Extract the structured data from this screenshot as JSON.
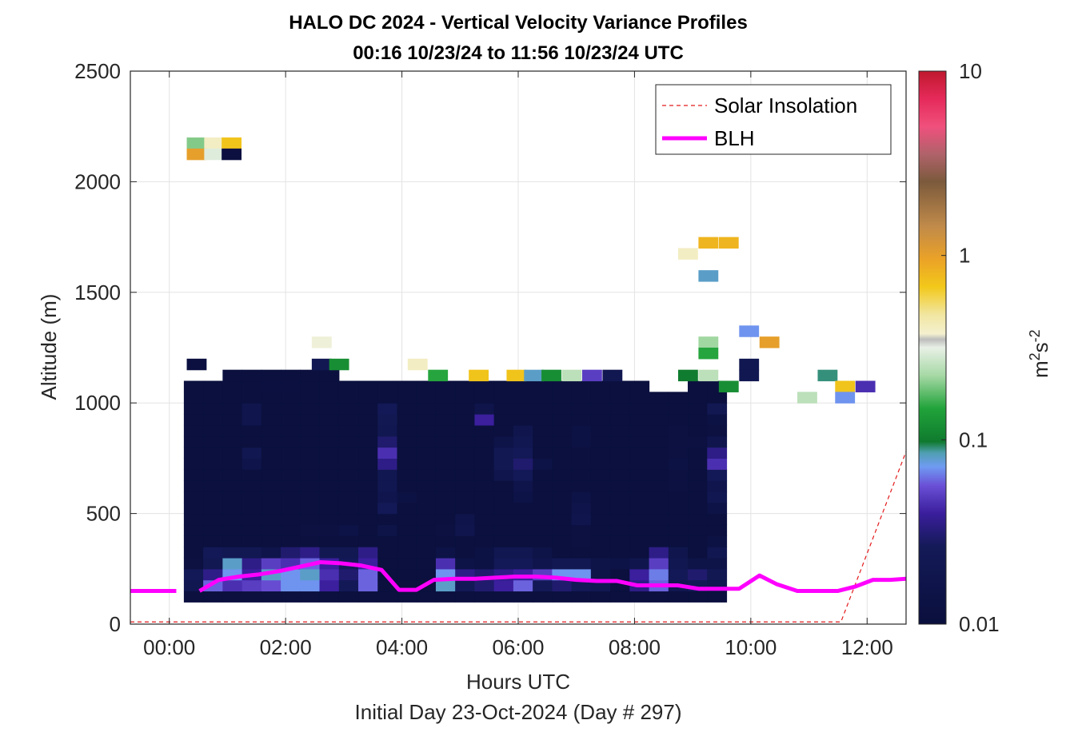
{
  "chart_data": {
    "type": "heatmap",
    "title": "HALO DC 2024 - Vertical Velocity Variance Profiles",
    "subtitle": "00:16 10/23/24 to 11:56 10/23/24  UTC",
    "xlabel": "Hours UTC",
    "xlabel2": "Initial Day 23-Oct-2024 (Day # 297)",
    "ylabel": "Altitude (m)",
    "xlim": [
      -0.67,
      12.67
    ],
    "ylim": [
      0,
      2500
    ],
    "x_ticks": [
      0,
      2,
      4,
      6,
      8,
      10,
      12
    ],
    "x_tick_labels": [
      "00:00",
      "02:00",
      "04:00",
      "06:00",
      "08:00",
      "10:00",
      "12:00"
    ],
    "y_ticks": [
      0,
      500,
      1000,
      1500,
      2000,
      2500
    ],
    "y_tick_labels": [
      "0",
      "500",
      "1000",
      "1500",
      "2000",
      "2500"
    ],
    "grid": true,
    "legend_position": "top-right",
    "colorbar": {
      "label_base": "m",
      "label_sup1": "2",
      "label_mid": "s",
      "label_sup2": "-2",
      "scale": "log",
      "min": 0.01,
      "max": 10,
      "ticks": [
        0.01,
        0.1,
        1,
        10
      ],
      "tick_labels": [
        "0.01",
        "0.1",
        "1",
        "10"
      ]
    },
    "heatmap": {
      "x_start": 0.25,
      "x_step": 0.3333,
      "y_start": 100,
      "y_step": 50,
      "cols": 28,
      "rows": 23,
      "background_value": 0.0105,
      "top_row_index": [
        19,
        19,
        20,
        20,
        20,
        20,
        20,
        20,
        19,
        19,
        19,
        19,
        19,
        19,
        19,
        19,
        19,
        19,
        19,
        19,
        19,
        19,
        19,
        19,
        18,
        18,
        19,
        19
      ],
      "cells": [
        [
          0,
          1,
          0.02
        ],
        [
          0,
          2,
          0.025
        ],
        [
          0,
          3,
          0.012
        ],
        [
          1,
          1,
          0.06
        ],
        [
          1,
          2,
          0.035
        ],
        [
          1,
          3,
          0.022
        ],
        [
          1,
          4,
          0.025
        ],
        [
          2,
          1,
          0.045
        ],
        [
          2,
          2,
          0.07
        ],
        [
          2,
          3,
          0.08
        ],
        [
          2,
          4,
          0.022
        ],
        [
          3,
          1,
          0.05
        ],
        [
          3,
          2,
          0.04
        ],
        [
          3,
          3,
          0.035
        ],
        [
          3,
          4,
          0.022
        ],
        [
          3,
          12,
          0.016
        ],
        [
          3,
          13,
          0.02
        ],
        [
          3,
          16,
          0.018
        ],
        [
          3,
          17,
          0.018
        ],
        [
          4,
          1,
          0.055
        ],
        [
          4,
          2,
          0.08
        ],
        [
          4,
          3,
          0.05
        ],
        [
          4,
          4,
          0.016
        ],
        [
          4,
          19,
          0.011
        ],
        [
          5,
          1,
          0.07
        ],
        [
          5,
          2,
          0.07
        ],
        [
          5,
          3,
          0.045
        ],
        [
          5,
          4,
          0.03
        ],
        [
          5,
          19,
          0.011
        ],
        [
          6,
          1,
          0.07
        ],
        [
          6,
          2,
          0.08
        ],
        [
          6,
          3,
          0.06
        ],
        [
          6,
          4,
          0.035
        ],
        [
          6,
          6,
          0.012
        ],
        [
          7,
          1,
          0.04
        ],
        [
          7,
          2,
          0.045
        ],
        [
          7,
          3,
          0.04
        ],
        [
          7,
          4,
          0.022
        ],
        [
          7,
          6,
          0.012
        ],
        [
          8,
          1,
          0.025
        ],
        [
          8,
          2,
          0.03
        ],
        [
          8,
          3,
          0.025
        ],
        [
          8,
          4,
          0.022
        ],
        [
          8,
          6,
          0.014
        ],
        [
          9,
          1,
          0.06
        ],
        [
          9,
          2,
          0.06
        ],
        [
          9,
          3,
          0.04
        ],
        [
          9,
          4,
          0.035
        ],
        [
          10,
          6,
          0.015
        ],
        [
          10,
          8,
          0.025
        ],
        [
          10,
          9,
          0.018
        ],
        [
          10,
          10,
          0.02
        ],
        [
          10,
          11,
          0.02
        ],
        [
          10,
          12,
          0.035
        ],
        [
          10,
          13,
          0.045
        ],
        [
          10,
          14,
          0.03
        ],
        [
          10,
          15,
          0.02
        ],
        [
          10,
          16,
          0.022
        ],
        [
          10,
          17,
          0.025
        ],
        [
          11,
          9,
          0.013
        ],
        [
          13,
          1,
          0.08
        ],
        [
          13,
          2,
          0.07
        ],
        [
          13,
          3,
          0.045
        ],
        [
          13,
          4,
          0.014
        ],
        [
          13,
          6,
          0.012
        ],
        [
          14,
          1,
          0.025
        ],
        [
          14,
          2,
          0.035
        ],
        [
          14,
          3,
          0.014
        ],
        [
          14,
          6,
          0.018
        ],
        [
          14,
          7,
          0.016
        ],
        [
          15,
          1,
          0.03
        ],
        [
          15,
          2,
          0.03
        ],
        [
          15,
          3,
          0.013
        ],
        [
          15,
          4,
          0.013
        ],
        [
          15,
          16,
          0.04
        ],
        [
          15,
          17,
          0.016
        ],
        [
          16,
          1,
          0.04
        ],
        [
          16,
          2,
          0.035
        ],
        [
          16,
          3,
          0.025
        ],
        [
          16,
          4,
          0.02
        ],
        [
          16,
          11,
          0.018
        ],
        [
          16,
          12,
          0.022
        ],
        [
          16,
          13,
          0.022
        ],
        [
          16,
          14,
          0.015
        ],
        [
          17,
          1,
          0.06
        ],
        [
          17,
          2,
          0.04
        ],
        [
          17,
          3,
          0.025
        ],
        [
          17,
          4,
          0.02
        ],
        [
          17,
          9,
          0.014
        ],
        [
          17,
          10,
          0.016
        ],
        [
          17,
          11,
          0.025
        ],
        [
          17,
          12,
          0.03
        ],
        [
          17,
          13,
          0.025
        ],
        [
          17,
          14,
          0.02
        ],
        [
          17,
          15,
          0.018
        ],
        [
          18,
          1,
          0.025
        ],
        [
          18,
          2,
          0.05
        ],
        [
          18,
          3,
          0.018
        ],
        [
          18,
          4,
          0.015
        ],
        [
          18,
          12,
          0.014
        ],
        [
          19,
          1,
          0.03
        ],
        [
          19,
          2,
          0.07
        ],
        [
          19,
          3,
          0.022
        ],
        [
          20,
          1,
          0.025
        ],
        [
          20,
          2,
          0.07
        ],
        [
          20,
          3,
          0.022
        ],
        [
          20,
          5,
          0.012
        ],
        [
          20,
          6,
          0.012
        ],
        [
          20,
          7,
          0.018
        ],
        [
          20,
          8,
          0.016
        ],
        [
          20,
          9,
          0.014
        ],
        [
          20,
          14,
          0.013
        ],
        [
          20,
          15,
          0.013
        ],
        [
          21,
          1,
          0.022
        ],
        [
          21,
          2,
          0.015
        ],
        [
          21,
          3,
          0.015
        ],
        [
          22,
          3,
          0.014
        ],
        [
          23,
          1,
          0.035
        ],
        [
          23,
          2,
          0.04
        ],
        [
          23,
          3,
          0.018
        ],
        [
          24,
          1,
          0.06
        ],
        [
          24,
          2,
          0.065
        ],
        [
          24,
          3,
          0.05
        ],
        [
          24,
          4,
          0.035
        ],
        [
          25,
          1,
          0.02
        ],
        [
          25,
          2,
          0.025
        ],
        [
          25,
          3,
          0.02
        ],
        [
          25,
          4,
          0.018
        ],
        [
          25,
          10,
          0.012
        ],
        [
          25,
          11,
          0.012
        ],
        [
          25,
          12,
          0.013
        ],
        [
          25,
          13,
          0.012
        ],
        [
          25,
          14,
          0.012
        ],
        [
          25,
          15,
          0.012
        ],
        [
          26,
          1,
          0.025
        ],
        [
          26,
          2,
          0.03
        ],
        [
          26,
          3,
          0.015
        ],
        [
          26,
          14,
          0.012
        ],
        [
          27,
          1,
          0.02
        ],
        [
          27,
          2,
          0.022
        ],
        [
          27,
          3,
          0.015
        ],
        [
          27,
          4,
          0.02
        ],
        [
          27,
          5,
          0.013
        ],
        [
          27,
          8,
          0.014
        ],
        [
          27,
          9,
          0.02
        ],
        [
          27,
          10,
          0.018
        ],
        [
          27,
          11,
          0.025
        ],
        [
          27,
          12,
          0.045
        ],
        [
          27,
          13,
          0.035
        ],
        [
          27,
          14,
          0.018
        ],
        [
          27,
          15,
          0.012
        ],
        [
          27,
          16,
          0.013
        ],
        [
          27,
          17,
          0.022
        ]
      ],
      "extra_cells": [
        [
          0.3,
          2150,
          0.2
        ],
        [
          0.6,
          2150,
          0.4
        ],
        [
          0.9,
          2150,
          0.7
        ],
        [
          0.3,
          2100,
          1.0
        ],
        [
          0.6,
          2100,
          0.3
        ],
        [
          0.9,
          2100,
          0.011
        ],
        [
          0.3,
          1150,
          0.011
        ],
        [
          2.45,
          1250,
          0.35
        ],
        [
          2.45,
          1150,
          0.022
        ],
        [
          2.75,
          1150,
          0.12
        ],
        [
          4.1,
          1150,
          0.4
        ],
        [
          4.45,
          1100,
          0.15
        ],
        [
          5.15,
          1100,
          0.7
        ],
        [
          5.8,
          1100,
          0.7
        ],
        [
          6.1,
          1100,
          0.08
        ],
        [
          6.4,
          1100,
          0.12
        ],
        [
          6.75,
          1100,
          0.25
        ],
        [
          7.1,
          1100,
          0.05
        ],
        [
          7.45,
          1100,
          0.02
        ],
        [
          8.75,
          1650,
          0.4
        ],
        [
          9.1,
          1700,
          0.8
        ],
        [
          9.45,
          1700,
          0.8
        ],
        [
          9.1,
          1550,
          0.08
        ],
        [
          9.1,
          1250,
          0.22
        ],
        [
          9.1,
          1200,
          0.15
        ],
        [
          8.75,
          1100,
          0.1
        ],
        [
          9.1,
          1100,
          0.25
        ],
        [
          9.45,
          1050,
          0.12
        ],
        [
          9.8,
          1150,
          0.02
        ],
        [
          9.8,
          1100,
          0.02
        ],
        [
          10.15,
          1250,
          1.0
        ],
        [
          9.8,
          1300,
          0.07
        ],
        [
          10.8,
          1000,
          0.25
        ],
        [
          11.15,
          1100,
          0.09
        ],
        [
          11.45,
          1050,
          0.7
        ],
        [
          11.45,
          1000,
          0.07
        ],
        [
          11.8,
          1050,
          0.045
        ]
      ]
    },
    "series": [
      {
        "name": "Solar Insolation",
        "style": "dashed",
        "color": "#e41a1c",
        "x": [
          -0.67,
          11.55,
          12.67
        ],
        "y": [
          10,
          10,
          780
        ]
      },
      {
        "name": "BLH",
        "style": "solid",
        "color": "#ff00ff",
        "segments": [
          {
            "x": [
              -0.67,
              0.12
            ],
            "y": [
              150,
              150
            ]
          },
          {
            "x": [
              0.52,
              0.85,
              1.2,
              1.55,
              1.9,
              2.25,
              2.6,
              2.95,
              3.3,
              3.65,
              3.95,
              4.25,
              4.55,
              4.9,
              5.25,
              5.6,
              5.95,
              6.3,
              6.65,
              7.0,
              7.35,
              7.7,
              8.05,
              8.4,
              8.75,
              9.1,
              9.45,
              9.8,
              10.15,
              10.45,
              10.8,
              11.15,
              11.5,
              11.8,
              12.1,
              12.4,
              12.67
            ],
            "y": [
              150,
              200,
              215,
              225,
              240,
              260,
              280,
              275,
              265,
              245,
              155,
              155,
              200,
              205,
              205,
              210,
              215,
              215,
              210,
              200,
              195,
              195,
              175,
              175,
              175,
              160,
              160,
              160,
              220,
              180,
              150,
              150,
              150,
              170,
              200,
              200,
              205
            ]
          }
        ]
      }
    ]
  }
}
